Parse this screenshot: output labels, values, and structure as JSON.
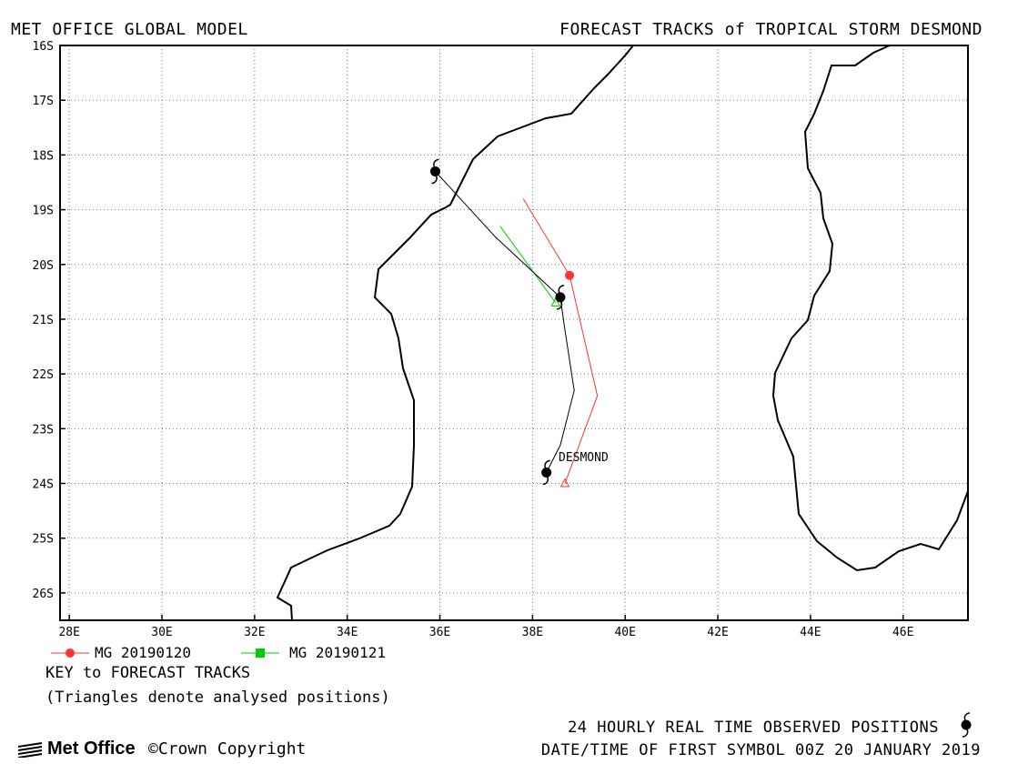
{
  "header": {
    "left": "MET OFFICE GLOBAL MODEL",
    "right": "FORECAST TRACKS of TROPICAL STORM DESMOND"
  },
  "chart_data": {
    "type": "map-tracks",
    "lon_range": [
      27.8,
      47.4
    ],
    "lat_range": [
      -26.5,
      -16.0
    ],
    "lon_ticks": [
      "28E",
      "30E",
      "32E",
      "34E",
      "36E",
      "38E",
      "40E",
      "42E",
      "44E",
      "46E"
    ],
    "lat_ticks": [
      "16S",
      "17S",
      "18S",
      "19S",
      "20S",
      "21S",
      "22S",
      "23S",
      "24S",
      "25S",
      "26S"
    ],
    "grid": true,
    "storm_label": "DESMOND",
    "observed_track": [
      {
        "lon": 35.9,
        "lat": -18.3
      },
      {
        "lon": 37.2,
        "lat": -19.5
      },
      {
        "lon": 38.6,
        "lat": -20.6
      },
      {
        "lon": 38.7,
        "lat": -21.2
      },
      {
        "lon": 38.9,
        "lat": -22.3
      },
      {
        "lon": 38.6,
        "lat": -23.3
      },
      {
        "lon": 38.3,
        "lat": -23.8
      }
    ],
    "observed_symbols": [
      {
        "lon": 35.9,
        "lat": -18.3
      },
      {
        "lon": 38.6,
        "lat": -20.6
      },
      {
        "lon": 38.3,
        "lat": -23.8
      }
    ],
    "series": [
      {
        "name": "MG 20190120",
        "color": "#ff3333",
        "analysed_position": {
          "lon": 38.7,
          "lat": -24.0
        },
        "track": [
          {
            "lon": 38.7,
            "lat": -24.0
          },
          {
            "lon": 39.4,
            "lat": -22.4
          },
          {
            "lon": 38.8,
            "lat": -20.2
          },
          {
            "lon": 37.8,
            "lat": -18.8
          }
        ]
      },
      {
        "name": "MG 20190121",
        "color": "#00cc00",
        "analysed_position": {
          "lon": 38.5,
          "lat": -20.7
        },
        "track": [
          {
            "lon": 38.5,
            "lat": -20.7
          },
          {
            "lon": 37.3,
            "lat": -19.3
          }
        ]
      }
    ]
  },
  "key": {
    "title": "KEY to FORECAST TRACKS",
    "note": "(Triangles denote analysed positions)"
  },
  "footer": {
    "observed": "24 HOURLY REAL TIME OBSERVED POSITIONS",
    "datetime": "DATE/TIME OF FIRST SYMBOL 00Z 20 JANUARY 2019",
    "brand": "Met Office",
    "copyright": "©Crown Copyright"
  }
}
